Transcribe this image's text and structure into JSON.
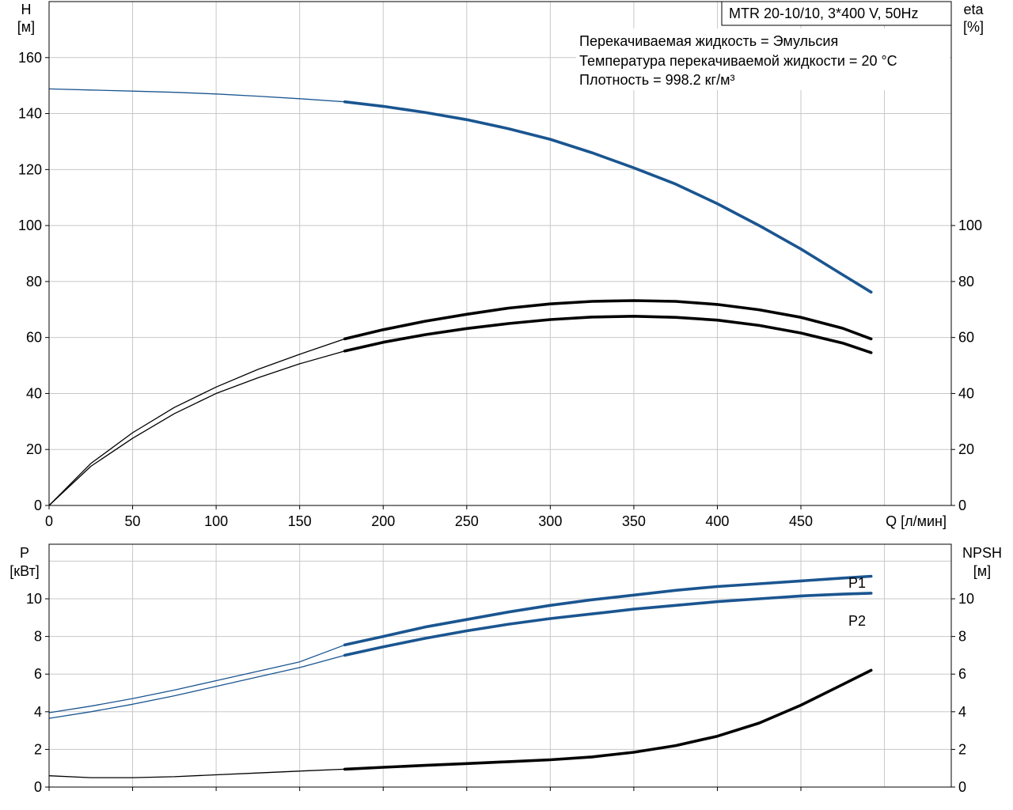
{
  "model_label": "MTR 20-10/10, 3*400 V, 50Hz",
  "info_lines": [
    "Перекачиваемая жидкость = Эмульсия",
    "Температура перекачиваемой жидкости = 20 °C",
    "Плотность = 998.2 кг/м³"
  ],
  "colors": {
    "blue": "#1a5590",
    "black": "#000000",
    "grid": "#c8c8c8"
  },
  "chart_data": [
    {
      "type": "line",
      "title": "",
      "x_axis": {
        "label": "Q [л/мин]",
        "range": [
          0,
          540
        ],
        "ticks": [
          0,
          50,
          100,
          150,
          200,
          250,
          300,
          350,
          400,
          450
        ]
      },
      "y_left": {
        "label_line1": "H",
        "label_line2": "[м]",
        "range": [
          0,
          180
        ],
        "ticks": [
          0,
          20,
          40,
          60,
          80,
          100,
          120,
          140,
          160
        ]
      },
      "y_right": {
        "label_line1": "eta",
        "label_line2": "[%]",
        "range": [
          0,
          180
        ],
        "ticks": [
          0,
          20,
          40,
          60,
          80,
          100
        ]
      },
      "grid": true,
      "series": [
        {
          "key": "head",
          "axis": "left",
          "color": "blue",
          "thin_end": 177,
          "x": [
            0,
            25,
            50,
            75,
            100,
            125,
            150,
            177,
            200,
            225,
            250,
            275,
            300,
            325,
            350,
            375,
            400,
            425,
            450,
            475,
            492
          ],
          "y": [
            148.8,
            148.4,
            148.0,
            147.6,
            147.0,
            146.2,
            145.3,
            144.2,
            142.6,
            140.4,
            137.8,
            134.6,
            130.8,
            126.0,
            120.6,
            114.8,
            107.8,
            100.0,
            91.6,
            82.4,
            76.2
          ]
        },
        {
          "key": "eta_pump",
          "axis": "right",
          "color": "black",
          "thin_end": 177,
          "x": [
            0,
            25,
            50,
            75,
            100,
            125,
            150,
            177,
            200,
            225,
            250,
            275,
            300,
            325,
            350,
            375,
            400,
            425,
            450,
            475,
            492
          ],
          "y": [
            0,
            15.0,
            26.0,
            35.0,
            42.3,
            48.6,
            54.0,
            59.5,
            62.8,
            65.8,
            68.3,
            70.5,
            72.0,
            72.9,
            73.2,
            72.9,
            71.8,
            69.9,
            67.2,
            63.3,
            59.5
          ]
        },
        {
          "key": "eta_total",
          "axis": "right",
          "color": "black",
          "thin_end": 177,
          "x": [
            0,
            25,
            50,
            75,
            100,
            125,
            150,
            177,
            200,
            225,
            250,
            275,
            300,
            325,
            350,
            375,
            400,
            425,
            450,
            475,
            492
          ],
          "y": [
            0,
            14.0,
            24.0,
            32.8,
            40.0,
            45.6,
            50.6,
            55.2,
            58.3,
            61.0,
            63.2,
            65.0,
            66.4,
            67.3,
            67.6,
            67.2,
            66.2,
            64.3,
            61.6,
            58.0,
            54.6
          ]
        }
      ]
    },
    {
      "type": "line",
      "title": "",
      "x_axis": {
        "range": [
          0,
          540
        ],
        "ticks": [
          0,
          50,
          100,
          150,
          200,
          250,
          300,
          350,
          400,
          450
        ]
      },
      "y_left": {
        "label_line1": "P",
        "label_line2": "[кВт]",
        "range": [
          0,
          12.9
        ],
        "ticks": [
          0,
          2,
          4,
          6,
          8,
          10
        ]
      },
      "y_right": {
        "label_line1": "NPSH",
        "label_line2": "[м]",
        "range": [
          0,
          12.9
        ],
        "ticks": [
          0,
          2,
          4,
          6,
          8,
          10
        ]
      },
      "grid": true,
      "series": [
        {
          "key": "P1",
          "name": "P1",
          "axis": "left",
          "color": "blue",
          "thin_end": 177,
          "x": [
            0,
            25,
            50,
            75,
            100,
            125,
            150,
            177,
            200,
            225,
            250,
            275,
            300,
            325,
            350,
            375,
            400,
            425,
            450,
            475,
            492
          ],
          "y": [
            3.95,
            4.3,
            4.7,
            5.15,
            5.65,
            6.15,
            6.65,
            7.55,
            8.0,
            8.5,
            8.9,
            9.3,
            9.65,
            9.95,
            10.2,
            10.45,
            10.65,
            10.8,
            10.95,
            11.1,
            11.2
          ]
        },
        {
          "key": "P2",
          "name": "P2",
          "axis": "left",
          "color": "blue",
          "thin_end": 177,
          "x": [
            0,
            25,
            50,
            75,
            100,
            125,
            150,
            177,
            200,
            225,
            250,
            275,
            300,
            325,
            350,
            375,
            400,
            425,
            450,
            475,
            492
          ],
          "y": [
            3.65,
            4.0,
            4.4,
            4.85,
            5.35,
            5.85,
            6.35,
            7.0,
            7.45,
            7.9,
            8.3,
            8.65,
            8.95,
            9.2,
            9.45,
            9.65,
            9.85,
            10.0,
            10.15,
            10.25,
            10.3
          ]
        },
        {
          "key": "NPSH",
          "axis": "right",
          "color": "black",
          "thin_end": 177,
          "x": [
            0,
            25,
            50,
            75,
            100,
            125,
            150,
            177,
            200,
            225,
            250,
            275,
            300,
            325,
            350,
            375,
            400,
            425,
            450,
            475,
            492
          ],
          "y": [
            0.6,
            0.5,
            0.5,
            0.55,
            0.65,
            0.75,
            0.85,
            0.95,
            1.05,
            1.15,
            1.25,
            1.35,
            1.45,
            1.6,
            1.85,
            2.2,
            2.7,
            3.4,
            4.35,
            5.45,
            6.2
          ]
        }
      ]
    }
  ]
}
